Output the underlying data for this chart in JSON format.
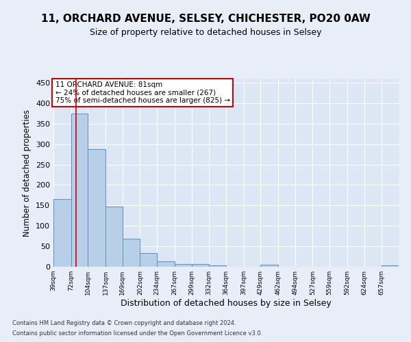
{
  "title": "11, ORCHARD AVENUE, SELSEY, CHICHESTER, PO20 0AW",
  "subtitle": "Size of property relative to detached houses in Selsey",
  "xlabel": "Distribution of detached houses by size in Selsey",
  "ylabel": "Number of detached properties",
  "footer_line1": "Contains HM Land Registry data © Crown copyright and database right 2024.",
  "footer_line2": "Contains public sector information licensed under the Open Government Licence v3.0.",
  "bar_edges": [
    39,
    72,
    104,
    137,
    169,
    202,
    234,
    267,
    299,
    332,
    364,
    397,
    429,
    462,
    494,
    527,
    559,
    592,
    624,
    657,
    689
  ],
  "bar_heights": [
    165,
    375,
    288,
    148,
    69,
    33,
    13,
    7,
    6,
    4,
    0,
    0,
    5,
    0,
    0,
    0,
    0,
    0,
    0,
    4
  ],
  "bar_color": "#b8cfe8",
  "bar_edge_color": "#5b8fc9",
  "property_size": 81,
  "annotation_title": "11 ORCHARD AVENUE: 81sqm",
  "annotation_line2": "← 24% of detached houses are smaller (267)",
  "annotation_line3": "75% of semi-detached houses are larger (825) →",
  "annotation_box_color": "#ffffff",
  "annotation_box_edge": "#cc0000",
  "red_line_color": "#cc0000",
  "ylim": [
    0,
    460
  ],
  "yticks": [
    0,
    50,
    100,
    150,
    200,
    250,
    300,
    350,
    400,
    450
  ],
  "bg_color": "#e8eef8",
  "plot_bg_color": "#dce6f5",
  "grid_color": "#ffffff",
  "title_fontsize": 11,
  "subtitle_fontsize": 9
}
